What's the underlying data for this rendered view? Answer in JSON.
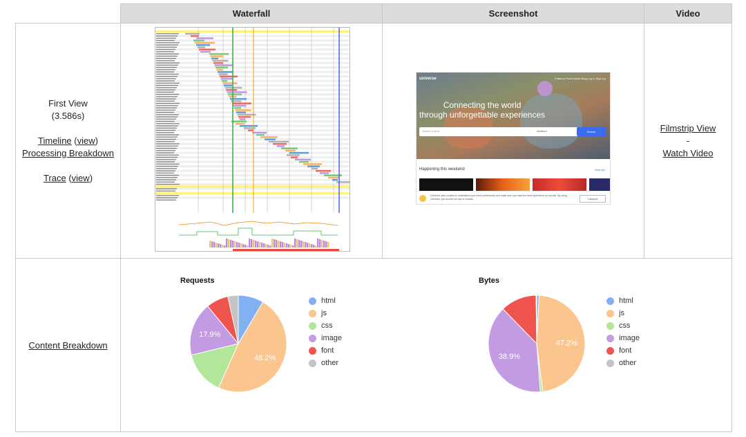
{
  "headers": {
    "waterfall": "Waterfall",
    "screenshot": "Screenshot",
    "video": "Video"
  },
  "first_view": {
    "title": "First View",
    "time": "(3.586s)",
    "timeline": "Timeline",
    "view1": "view",
    "processing": "Processing Breakdown",
    "trace": "Trace",
    "view2": "view"
  },
  "video": {
    "filmstrip": "Filmstrip View",
    "sep": "-",
    "watch": "Watch Video"
  },
  "content_breakdown": "Content Breakdown",
  "screenshot_page": {
    "brand": "universe",
    "nav": "Platform  Find Events  Blog  Log In  Sign Up",
    "headline1": "Connecting the world",
    "headline2": "through unforgettable experiences",
    "search_placeholder": "Search events",
    "location": "Ashburn",
    "search_button": "Search",
    "section_title": "Happening this weekend",
    "view_all": "View all ›",
    "cookie_text": "Universe uses cookies to understand your event preferences and make sure you have the best experience on our site. By using Universe, you accept our use of cookies.",
    "accept": "I accept"
  },
  "colors": {
    "html": "#82b1f2",
    "js": "#fbc68e",
    "css": "#b2e79a",
    "image": "#c39be3",
    "font": "#f0554d",
    "other": "#c4c4c4"
  },
  "chart_data": [
    {
      "type": "pie",
      "title": "Requests",
      "labels": [
        "html",
        "js",
        "css",
        "image",
        "font",
        "other"
      ],
      "values": [
        8.5,
        48.2,
        14.5,
        17.9,
        7.4,
        3.5
      ],
      "value_labels": [
        "",
        "48.2%",
        "",
        "17.9%",
        "",
        ""
      ],
      "legend_position": "right"
    },
    {
      "type": "pie",
      "title": "Bytes",
      "labels": [
        "html",
        "js",
        "css",
        "image",
        "font",
        "other"
      ],
      "values": [
        0.8,
        47.2,
        0.8,
        38.9,
        12.1,
        0.2
      ],
      "value_labels": [
        "",
        "47.2%",
        "",
        "38.9%",
        "",
        ""
      ],
      "legend_position": "right"
    }
  ]
}
